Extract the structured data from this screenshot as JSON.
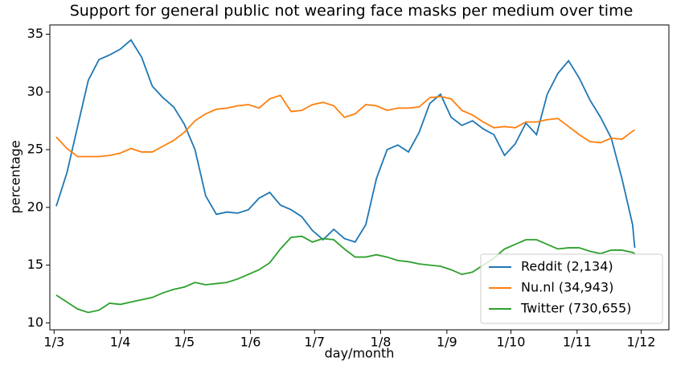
{
  "chart_data": {
    "type": "line",
    "title": "Support for general public not wearing face masks per medium over time",
    "xlabel": "day/month",
    "ylabel": "percentage",
    "x": [
      62,
      67,
      72,
      77,
      82,
      87,
      92,
      97,
      102,
      107,
      112,
      117,
      122,
      127,
      132,
      137,
      142,
      147,
      152,
      157,
      162,
      167,
      172,
      177,
      182,
      187,
      192,
      197,
      202,
      207,
      212,
      217,
      222,
      227,
      232,
      237,
      242,
      247,
      252,
      257,
      262,
      267,
      272,
      277,
      282,
      287,
      292,
      297,
      302,
      307,
      312,
      317,
      322,
      327,
      332,
      333
    ],
    "series": [
      {
        "name": "Reddit (2,134)",
        "color": "#1f77b4",
        "values": [
          20.1,
          23,
          27,
          31,
          32.8,
          33.2,
          33.7,
          34.5,
          33,
          30.5,
          29.5,
          28.7,
          27.2,
          25,
          21,
          19.4,
          19.6,
          19.5,
          19.8,
          20.8,
          21.3,
          20.2,
          19.8,
          19.2,
          18,
          17.2,
          18.1,
          17.3,
          17,
          18.5,
          22.5,
          25,
          25.4,
          24.8,
          26.5,
          29,
          29.8,
          27.8,
          27.1,
          27.5,
          26.8,
          26.3,
          24.5,
          25.5,
          27.3,
          26.3,
          29.8,
          31.6,
          32.7,
          31.2,
          29.3,
          27.8,
          26,
          22.5,
          18.5,
          16.5
        ]
      },
      {
        "name": "Nu.nl (34,943)",
        "color": "#ff7f0e",
        "values": [
          26.1,
          25.1,
          24.4,
          24.4,
          24.4,
          24.5,
          24.7,
          25.1,
          24.8,
          24.8,
          25.3,
          25.8,
          26.5,
          27.5,
          28.1,
          28.5,
          28.6,
          28.8,
          28.9,
          28.6,
          29.4,
          29.7,
          28.3,
          28.4,
          28.9,
          29.1,
          28.8,
          27.8,
          28.1,
          28.9,
          28.8,
          28.4,
          28.6,
          28.6,
          28.7,
          29.5,
          29.6,
          29.4,
          28.4,
          28.0,
          27.4,
          26.9,
          27.0,
          26.9,
          27.4,
          27.4,
          27.6,
          27.7,
          27.0,
          26.3,
          25.7,
          25.6,
          26.0,
          25.9,
          26.6,
          26.7
        ]
      },
      {
        "name": "Twitter (730,655)",
        "color": "#2ca02c",
        "values": [
          12.4,
          11.8,
          11.2,
          10.9,
          11.1,
          11.7,
          11.6,
          11.8,
          12.0,
          12.2,
          12.6,
          12.9,
          13.1,
          13.5,
          13.3,
          13.4,
          13.5,
          13.8,
          14.2,
          14.6,
          15.2,
          16.4,
          17.4,
          17.5,
          17.0,
          17.3,
          17.2,
          16.4,
          15.7,
          15.7,
          15.9,
          15.7,
          15.4,
          15.3,
          15.1,
          15.0,
          14.9,
          14.6,
          14.2,
          14.4,
          15.0,
          15.6,
          16.4,
          16.8,
          17.2,
          17.2,
          16.8,
          16.4,
          16.5,
          16.5,
          16.2,
          16.0,
          16.3,
          16.3,
          16.1,
          16.0
        ]
      }
    ],
    "xlim": [
      59,
      349
    ],
    "xticks": [
      {
        "value": 61,
        "label": "1/3"
      },
      {
        "value": 92,
        "label": "1/4"
      },
      {
        "value": 122,
        "label": "1/5"
      },
      {
        "value": 153,
        "label": "1/6"
      },
      {
        "value": 183,
        "label": "1/7"
      },
      {
        "value": 214,
        "label": "1/8"
      },
      {
        "value": 245,
        "label": "1/9"
      },
      {
        "value": 275,
        "label": "1/10"
      },
      {
        "value": 306,
        "label": "1/11"
      },
      {
        "value": 336,
        "label": "1/12"
      }
    ],
    "ylim": [
      9.4,
      35.8
    ],
    "yticks": [
      10,
      15,
      20,
      25,
      30,
      35
    ],
    "grid": false,
    "legend": "lower right"
  }
}
